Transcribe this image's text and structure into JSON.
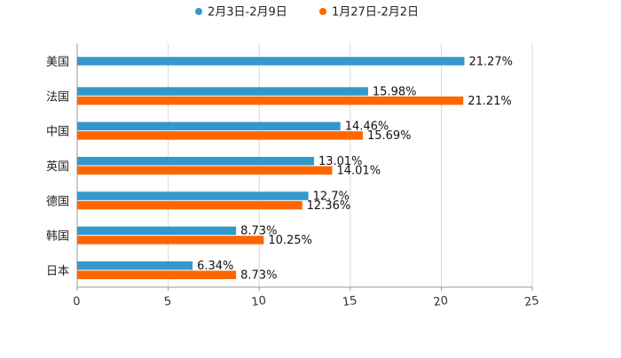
{
  "chart_data": {
    "type": "bar",
    "orientation": "horizontal",
    "categories": [
      "美国",
      "法国",
      "中国",
      "英国",
      "德国",
      "韩国",
      "日本"
    ],
    "series": [
      {
        "name": "2月3日-2月9日",
        "color": "#3399cc",
        "values": [
          21.27,
          15.98,
          14.46,
          13.01,
          12.7,
          8.73,
          6.34
        ],
        "labels": [
          "21.27%",
          "15.98%",
          "14.46%",
          "13.01%",
          "12.7%",
          "8.73%",
          "6.34%"
        ]
      },
      {
        "name": "1月27日-2月2日",
        "color": "#ff6600",
        "values": [
          null,
          21.21,
          15.69,
          14.01,
          12.36,
          10.25,
          8.73
        ],
        "labels": [
          "",
          "21.21%",
          "15.69%",
          "14.01%",
          "12.36%",
          "10.25%",
          "8.73%"
        ]
      }
    ],
    "xlim": [
      0,
      25
    ],
    "ticks": [
      0,
      5,
      10,
      15,
      20,
      25
    ],
    "tick_labels": [
      "0",
      "5",
      "10",
      "15",
      "20",
      "25"
    ],
    "grid": true,
    "legend_position": "top-center",
    "title": "",
    "xlabel": "",
    "ylabel": ""
  }
}
